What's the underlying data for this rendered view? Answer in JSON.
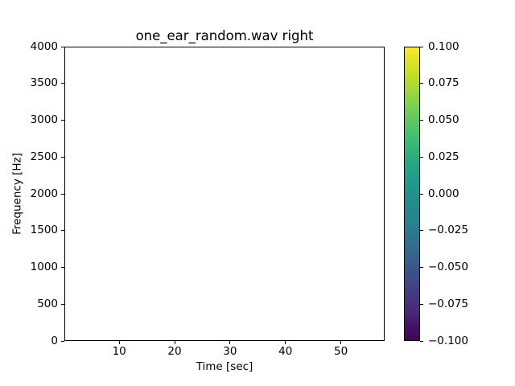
{
  "figure": {
    "background_color": "#ffffff",
    "spine_color": "#000000",
    "text_color": "#000000"
  },
  "chart_data": {
    "type": "heatmap",
    "subtype": "spectrogram",
    "title": "one_ear_random.wav right",
    "xlabel": "Time [sec]",
    "ylabel": "Frequency [Hz]",
    "xlim": [
      0.1,
      57.9
    ],
    "ylim": [
      0,
      4000
    ],
    "xticks": [
      10,
      20,
      30,
      40,
      50
    ],
    "yticks": [
      0,
      500,
      1000,
      1500,
      2000,
      2500,
      3000,
      3500,
      4000
    ],
    "grid": false,
    "plot_content": "empty (uniform white plot area, no visible spectrogram energy)",
    "colorbar": {
      "position": "right",
      "vmin": -0.1,
      "vmax": 0.1,
      "tick_values_top_to_bottom": [
        0.1,
        0.075,
        0.05,
        0.025,
        0.0,
        -0.025,
        -0.05,
        -0.075,
        -0.1
      ],
      "tick_labels_top_to_bottom": [
        "0.100",
        "0.075",
        "0.050",
        "0.025",
        "0.000",
        "−0.025",
        "−0.050",
        "−0.075",
        "−0.100"
      ],
      "colormap": "viridis",
      "colormap_stops_bottom_to_top": [
        "#440154",
        "#482878",
        "#3e4989",
        "#31688e",
        "#26828e",
        "#21918c",
        "#22a884",
        "#44bf70",
        "#7ad151",
        "#bddf26",
        "#fde725"
      ]
    }
  }
}
